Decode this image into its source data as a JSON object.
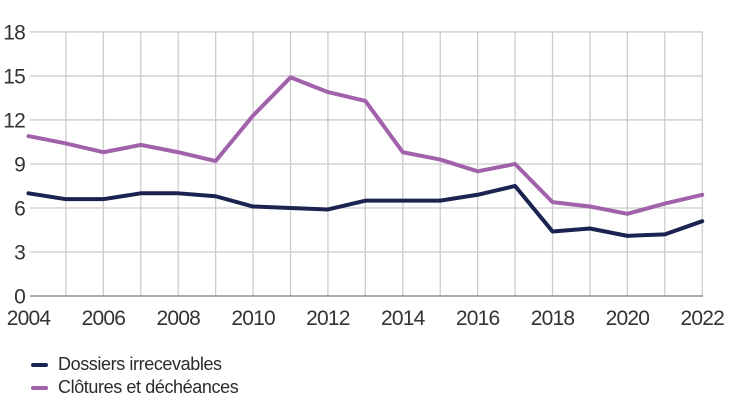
{
  "colors": {
    "background": "#ffffff",
    "grid": "#cccccc",
    "axis": "#8f8f8f",
    "tick_label": "#333333",
    "legend_text": "#2b2b2b",
    "series_navy": "#1b2451",
    "series_purple": "#a161ab"
  },
  "chart_data": {
    "type": "line",
    "title": "",
    "xlabel": "",
    "ylabel": "",
    "x": [
      2004,
      2005,
      2006,
      2007,
      2008,
      2009,
      2010,
      2011,
      2012,
      2013,
      2014,
      2015,
      2016,
      2017,
      2018,
      2019,
      2020,
      2021,
      2022
    ],
    "x_tick_labels": [
      "2004",
      "2006",
      "2008",
      "2010",
      "2012",
      "2014",
      "2016",
      "2018",
      "2020",
      "2022"
    ],
    "y_ticks": [
      0,
      3,
      6,
      9,
      12,
      15,
      18
    ],
    "ylim": [
      0,
      18
    ],
    "grid": true,
    "legend_position": "bottom-left",
    "series": [
      {
        "name": "Dossiers irrecevables",
        "color": "#1b2451",
        "values": [
          7.0,
          6.6,
          6.6,
          7.0,
          7.0,
          6.8,
          6.1,
          6.0,
          5.9,
          6.5,
          6.5,
          6.5,
          6.9,
          7.5,
          4.4,
          4.6,
          4.1,
          4.2,
          5.1
        ]
      },
      {
        "name": "Clôtures et déchéances",
        "color": "#a161ab",
        "values": [
          10.9,
          10.4,
          9.8,
          10.3,
          9.8,
          9.2,
          12.3,
          14.9,
          13.9,
          13.3,
          9.8,
          9.3,
          8.5,
          9.0,
          6.4,
          6.1,
          5.6,
          6.3,
          6.9
        ]
      }
    ]
  }
}
